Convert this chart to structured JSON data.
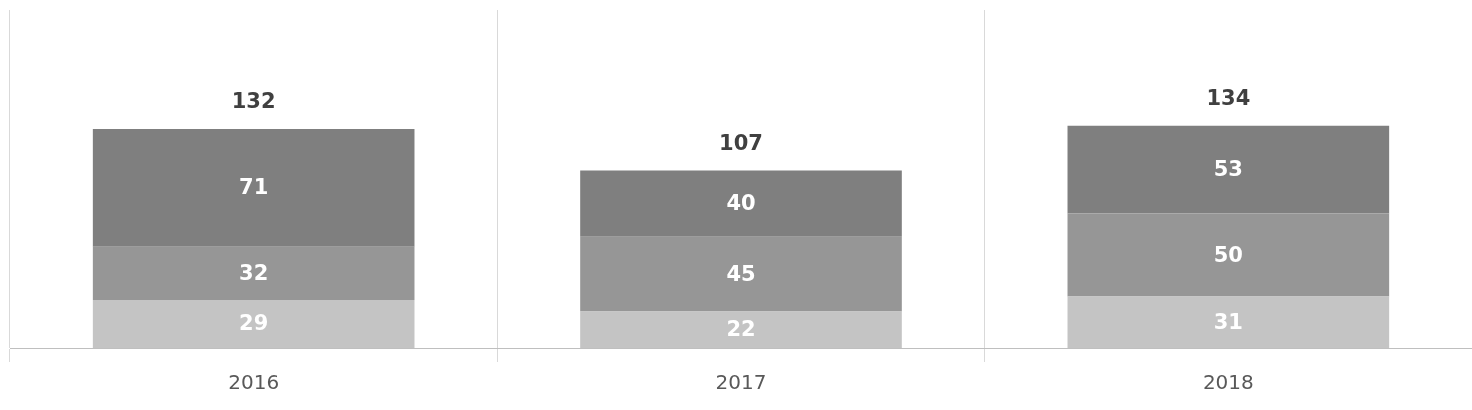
{
  "chart_data": {
    "type": "bar",
    "stacked": true,
    "categories": [
      "2016",
      "2017",
      "2018"
    ],
    "series": [
      {
        "color": "#c4c4c4",
        "values": [
          29,
          22,
          31
        ]
      },
      {
        "color": "#969696",
        "values": [
          32,
          45,
          50
        ]
      },
      {
        "color": "#7f7f7f",
        "values": [
          71,
          40,
          53
        ]
      }
    ],
    "data_labels": true,
    "totals": [
      "132",
      "107",
      "134"
    ],
    "grid": "x",
    "legend": false
  }
}
